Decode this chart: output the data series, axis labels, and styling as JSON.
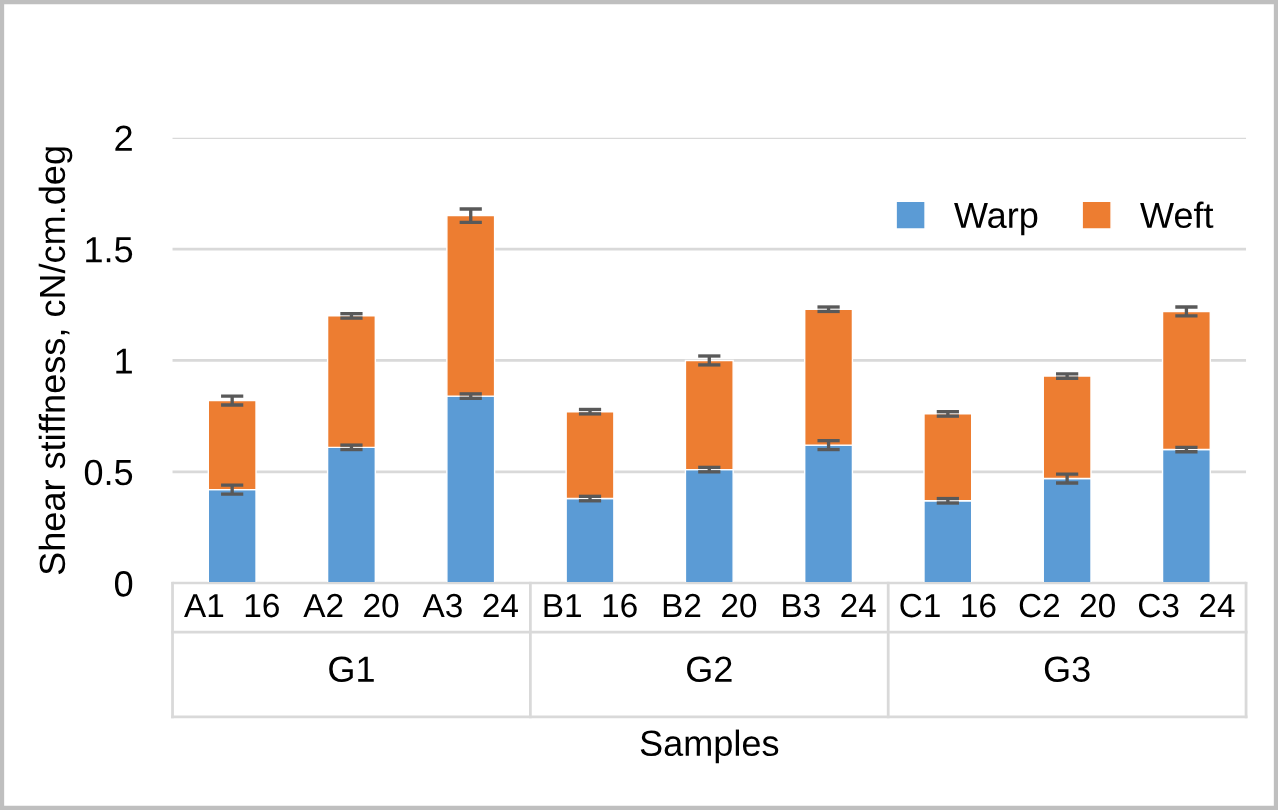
{
  "chart_data": {
    "type": "bar",
    "stacked": true,
    "xlabel": "Samples",
    "ylabel": "Shear stiffness, cN/cm.deg",
    "categories": [
      "A1  16",
      "A2  20",
      "A3  24",
      "B1  16",
      "B2  20",
      "B3  24",
      "C1  16",
      "C2  20",
      "C3  24"
    ],
    "series": [
      {
        "name": "Warp",
        "color": "#5b9bd5",
        "values": [
          0.42,
          0.61,
          0.84,
          0.38,
          0.51,
          0.62,
          0.37,
          0.47,
          0.6
        ],
        "errors": [
          0.02,
          0.01,
          0.01,
          0.01,
          0.01,
          0.02,
          0.01,
          0.02,
          0.01
        ]
      },
      {
        "name": "Weft",
        "color": "#ed7d31",
        "values": [
          0.4,
          0.59,
          0.81,
          0.39,
          0.49,
          0.61,
          0.39,
          0.46,
          0.62
        ],
        "errors": [
          0.02,
          0.01,
          0.03,
          0.01,
          0.02,
          0.01,
          0.01,
          0.01,
          0.02
        ]
      }
    ],
    "annotations": [
      "G1",
      "G2",
      "G3"
    ],
    "ylim": [
      0,
      2
    ],
    "yticks": [
      0,
      0.5,
      1,
      1.5,
      2
    ],
    "grid": "y",
    "legend": "top right"
  }
}
